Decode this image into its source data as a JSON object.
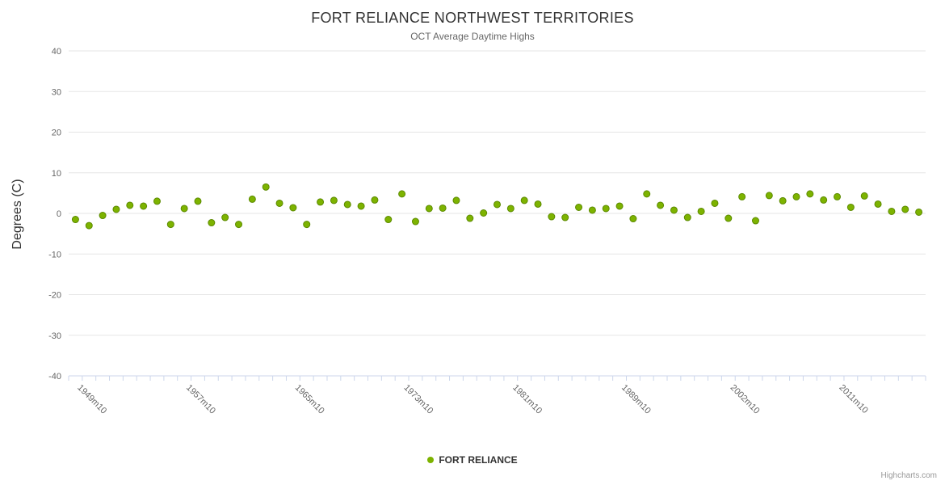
{
  "colors": {
    "grid": "#e6e6e6",
    "axis_line": "#ccd6eb",
    "axis_text": "#666666",
    "title_text": "#333333",
    "credits_text": "#999999"
  },
  "credits": "Highcharts.com",
  "chart_data": {
    "type": "scatter",
    "title": "FORT RELIANCE NORTHWEST TERRITORIES",
    "subtitle": "OCT Average Daytime Highs",
    "xlabel": "",
    "ylabel": "Degrees (C)",
    "ylim": [
      -40,
      40
    ],
    "grid": true,
    "legend_position": "bottom",
    "y_ticks": [
      {
        "value": 40,
        "label": "40"
      },
      {
        "value": 30,
        "label": "30"
      },
      {
        "value": 20,
        "label": "20"
      },
      {
        "value": 10,
        "label": "10"
      },
      {
        "value": 0,
        "label": "0"
      },
      {
        "value": -10,
        "label": "-10"
      },
      {
        "value": -20,
        "label": "-20"
      },
      {
        "value": -30,
        "label": "-30"
      },
      {
        "value": -40,
        "label": "-40"
      }
    ],
    "x_ticks": [
      {
        "index": 0,
        "label": "1949m10"
      },
      {
        "index": 8,
        "label": "1957m10"
      },
      {
        "index": 16,
        "label": "1965m10"
      },
      {
        "index": 24,
        "label": "1973m10"
      },
      {
        "index": 32,
        "label": "1981m10"
      },
      {
        "index": 40,
        "label": "1989m10"
      },
      {
        "index": 48,
        "label": "2002m10"
      },
      {
        "index": 56,
        "label": "2011m10"
      }
    ],
    "categories": [
      "1949m10",
      "1950m10",
      "1951m10",
      "1952m10",
      "1953m10",
      "1954m10",
      "1955m10",
      "1956m10",
      "1957m10",
      "1958m10",
      "1959m10",
      "1960m10",
      "1961m10",
      "1962m10",
      "1963m10",
      "1964m10",
      "1965m10",
      "1966m10",
      "1967m10",
      "1968m10",
      "1969m10",
      "1970m10",
      "1971m10",
      "1972m10",
      "1973m10",
      "1974m10",
      "1975m10",
      "1976m10",
      "1977m10",
      "1978m10",
      "1979m10",
      "1980m10",
      "1981m10",
      "1982m10",
      "1983m10",
      "1984m10",
      "1985m10",
      "1986m10",
      "1987m10",
      "1988m10",
      "1989m10",
      "1990m10",
      "1991m10",
      "1992m10",
      "1995m10",
      "1997m10",
      "1999m10",
      "2001m10",
      "2002m10",
      "2003m10",
      "2004m10",
      "2005m10",
      "2006m10",
      "2007m10",
      "2008m10",
      "2010m10",
      "2011m10",
      "2012m10",
      "2013m10",
      "2014m10",
      "2015m10",
      "2016m10",
      "2017m10"
    ],
    "series": [
      {
        "name": "FORT RELIANCE",
        "color": "#7db300",
        "marker_stroke": "#5c8a00",
        "values": [
          -1.5,
          -3,
          -0.5,
          1,
          2,
          1.8,
          3,
          -2.7,
          1.2,
          3,
          -2.3,
          -1,
          -2.7,
          3.5,
          6.5,
          2.5,
          1.4,
          -2.7,
          2.8,
          3.2,
          2.2,
          1.8,
          3.3,
          -1.5,
          4.8,
          -2,
          1.2,
          1.3,
          3.2,
          -1.2,
          0.1,
          2.2,
          1.2,
          3.2,
          2.3,
          -0.8,
          -1,
          1.5,
          0.8,
          1.2,
          1.8,
          -1.3,
          4.8,
          2,
          0.8,
          -1,
          0.5,
          2.5,
          -1.2,
          4.1,
          -1.8,
          4.4,
          3.1,
          4.1,
          4.8,
          3.3,
          4.1,
          1.5,
          4.3,
          2.3,
          0.5,
          1,
          0.3
        ]
      }
    ]
  }
}
